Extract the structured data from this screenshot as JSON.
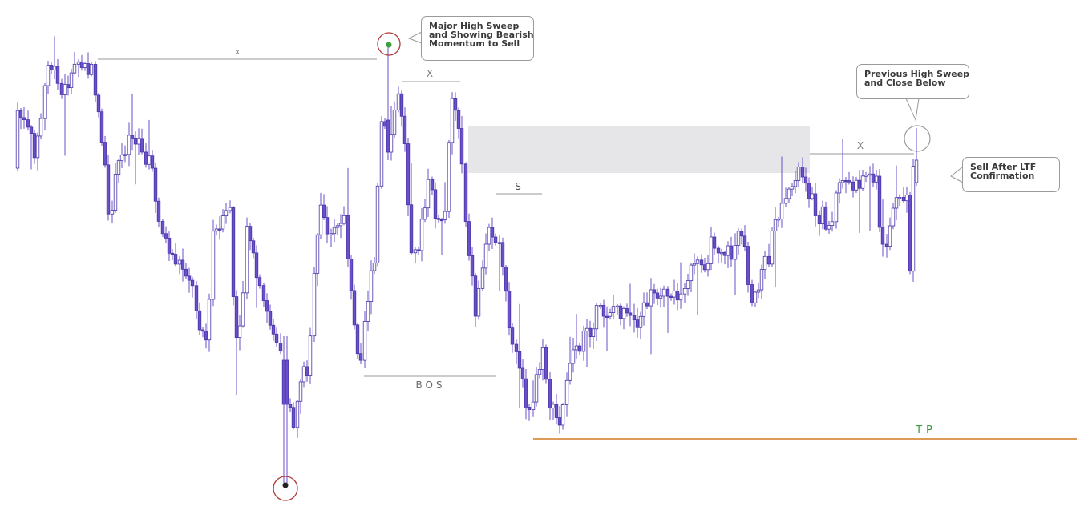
{
  "chart_data": {
    "type": "candlestick",
    "colors": {
      "candle": "#6a4fc8",
      "candle_edge": "#4a36a8",
      "candle_fill_up": "#ffffff",
      "tp_line": "#d07a20",
      "tp_text": "#3a9a3a",
      "circle": "#b03a3a",
      "zone": "#e6e6e8",
      "level_line": "#9a9a9a"
    },
    "annotations": {
      "x_left": "x",
      "x_mid": "X",
      "x_right": "X",
      "s_label": "S",
      "bos_label": "BOS",
      "tp_label": "TP",
      "callout_major": [
        "Major High Sweep",
        "and Showing Bearish",
        "Momentum to Sell"
      ],
      "callout_prev": [
        "Previous High Sweep",
        "and Close Below"
      ],
      "callout_sell": [
        "Sell After LTF",
        "Confirmation"
      ]
    }
  }
}
